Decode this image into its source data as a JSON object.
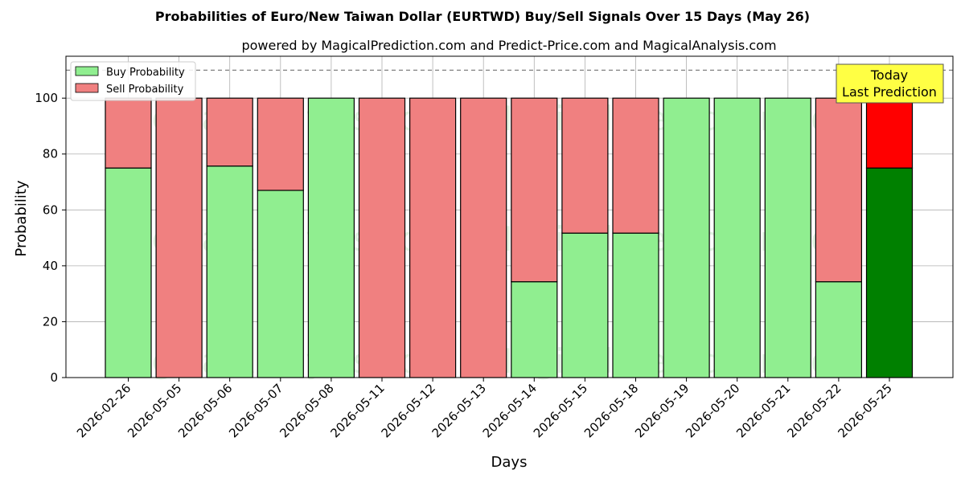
{
  "chart_data": {
    "type": "bar",
    "stacked": true,
    "title": "Probabilities of Euro/New Taiwan Dollar (EURTWD) Buy/Sell Signals Over 15 Days (May 26)",
    "subtitle": "powered by MagicalPrediction.com and Predict-Price.com and MagicalAnalysis.com",
    "xlabel": "Days",
    "ylabel": "Probability",
    "ylim": [
      0,
      115
    ],
    "yticks": [
      0,
      20,
      40,
      60,
      80,
      100
    ],
    "reference_line": 110,
    "grid": true,
    "legend_placement": "top-left",
    "categories": [
      "2026-02-26",
      "2026-05-05",
      "2026-05-06",
      "2026-05-07",
      "2026-05-08",
      "2026-05-11",
      "2026-05-12",
      "2026-05-13",
      "2026-05-14",
      "2026-05-15",
      "2026-05-18",
      "2026-05-19",
      "2026-05-20",
      "2026-05-21",
      "2026-05-22",
      "2026-05-25"
    ],
    "series": [
      {
        "name": "Buy Probability",
        "color": "#90ee90",
        "highlight_color": "#008000",
        "values": [
          75,
          0,
          75.7,
          67,
          100,
          0,
          0,
          0,
          34.3,
          51.7,
          51.7,
          100,
          100,
          100,
          34.3,
          75
        ]
      },
      {
        "name": "Sell Probability",
        "color": "#f08080",
        "highlight_color": "#ff0000",
        "values": [
          25,
          100,
          24.3,
          33,
          0,
          100,
          100,
          100,
          65.7,
          48.3,
          48.3,
          0,
          0,
          0,
          65.7,
          25
        ]
      }
    ],
    "highlight_index": 15,
    "annotation": {
      "line1": "Today",
      "line2": "Last Prediction",
      "color": "#ffff44"
    },
    "watermarks": [
      "MagicalAnalysis.com",
      "MagicalPrediction.com"
    ]
  }
}
